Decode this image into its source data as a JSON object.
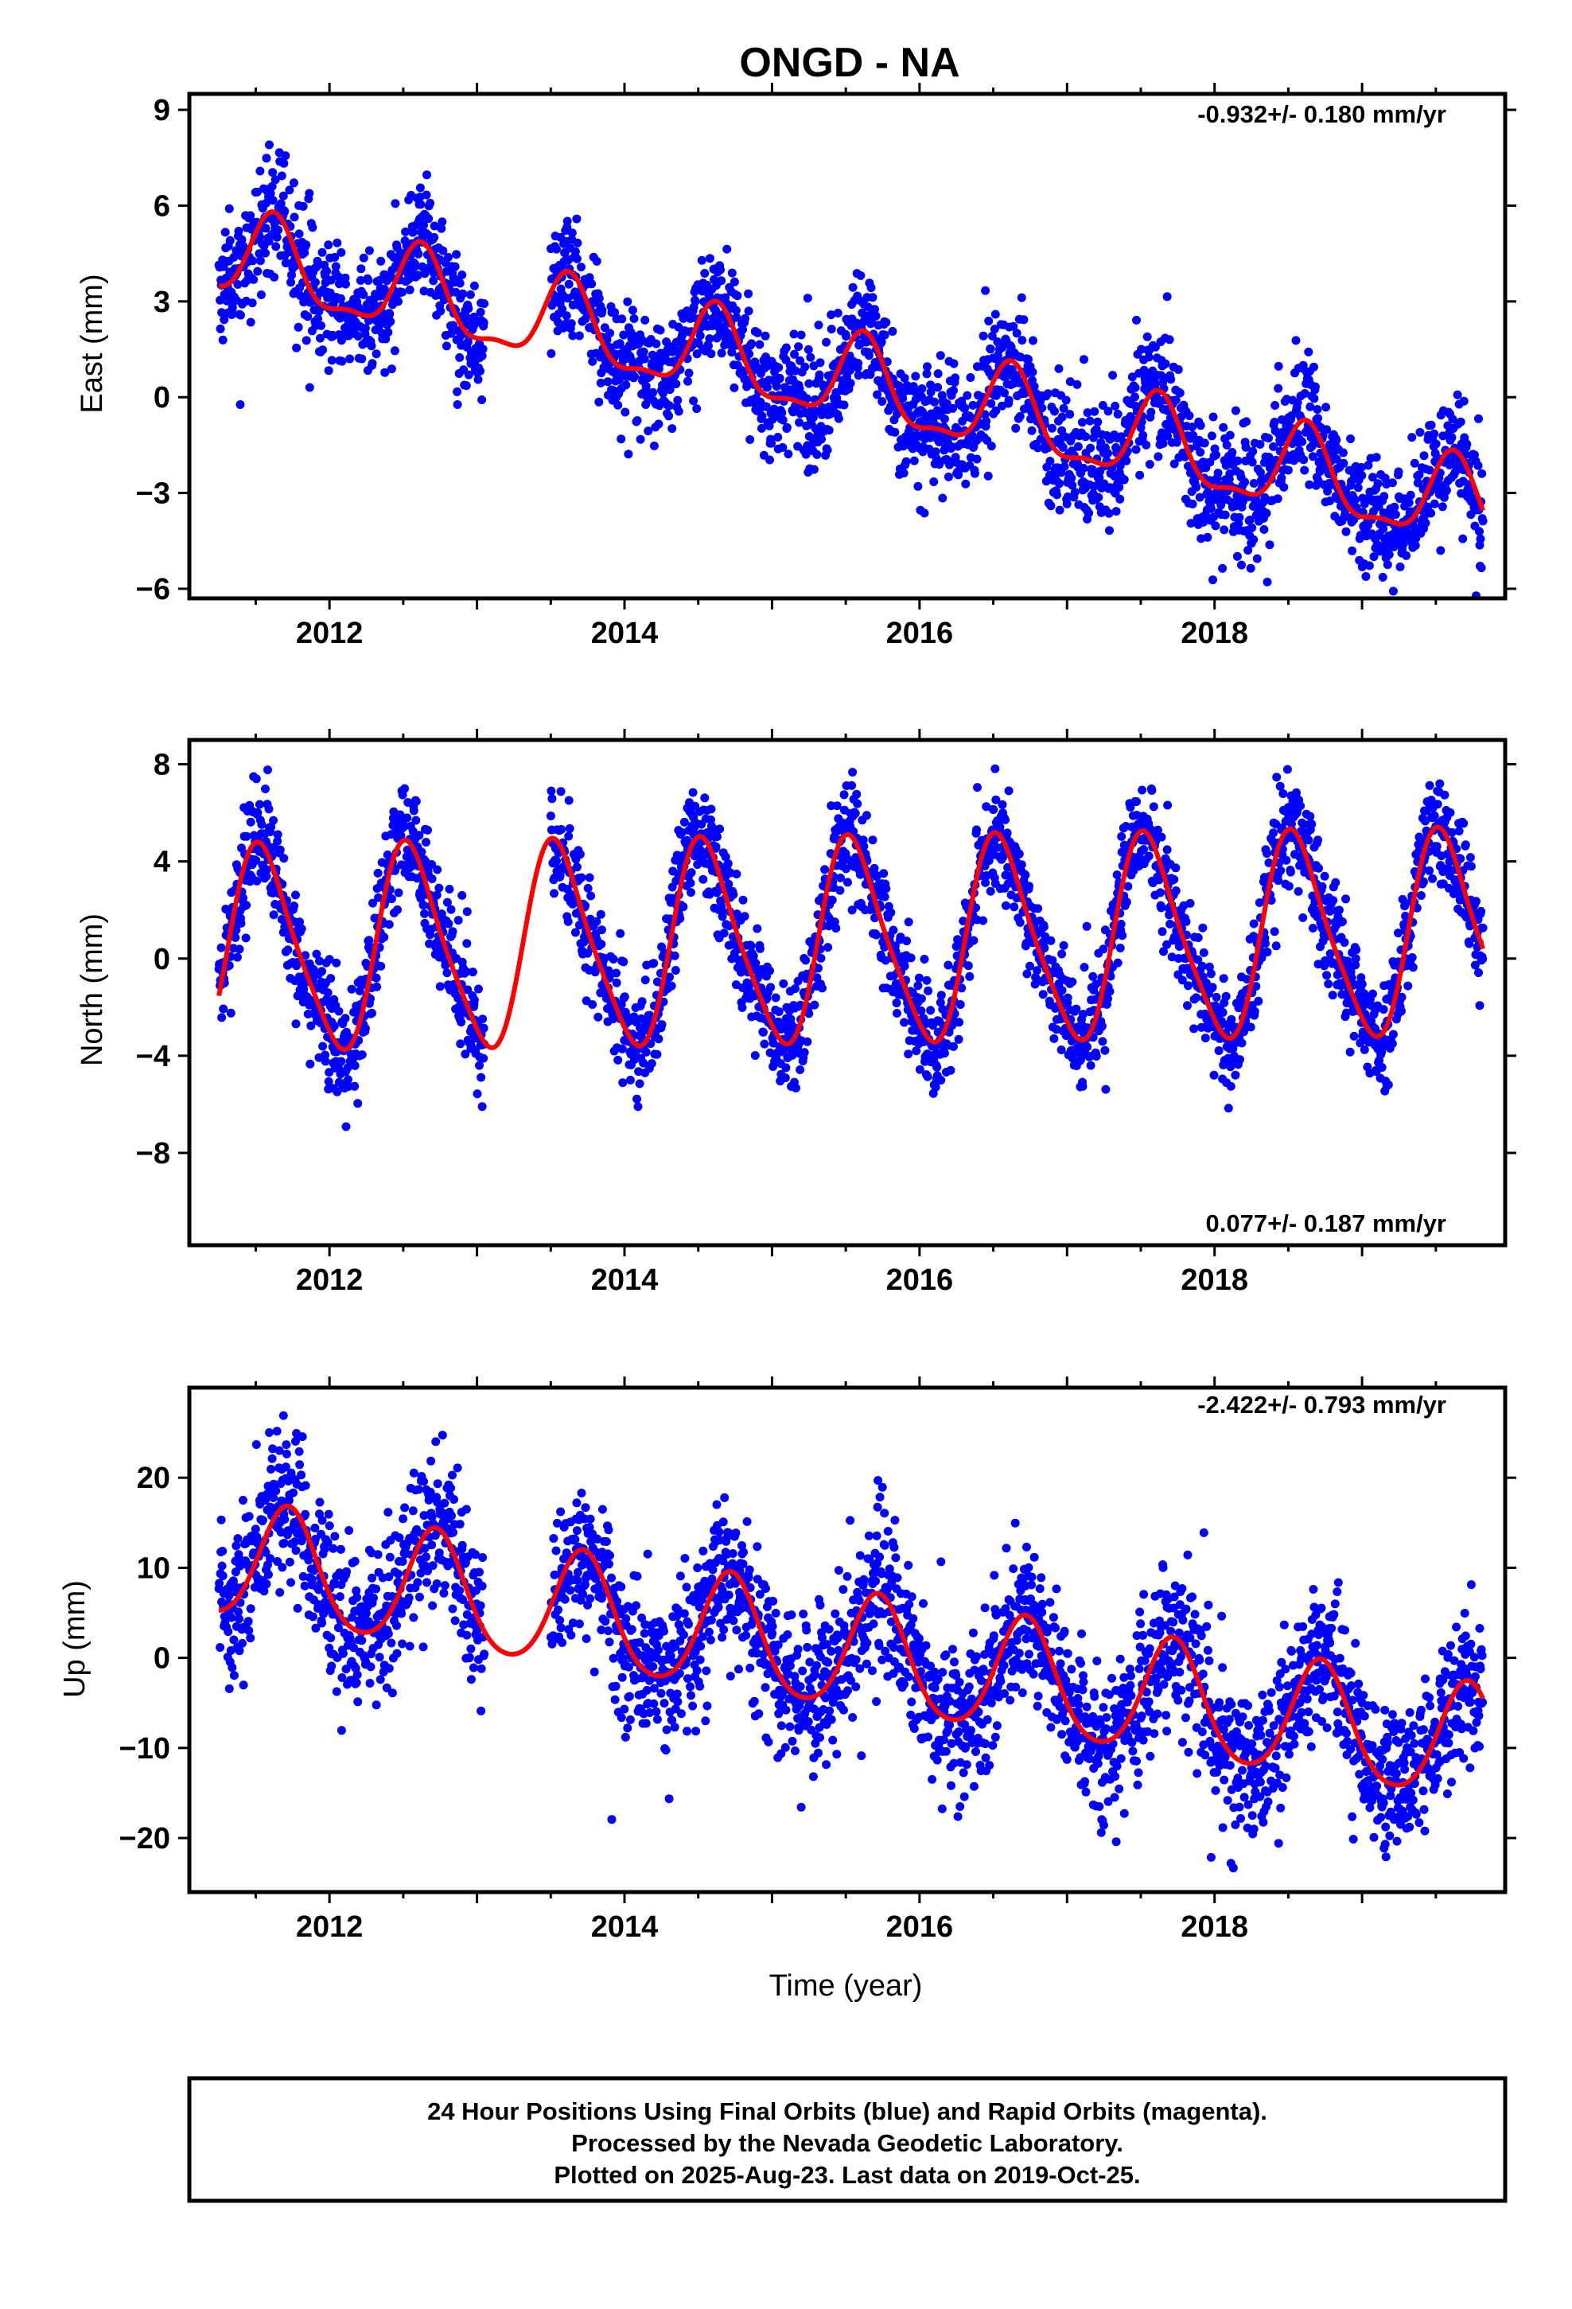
{
  "title": "ONGD - NA",
  "xlabel": "Time (year)",
  "footer": {
    "lines": [
      "24 Hour Positions Using Final Orbits (blue) and Rapid Orbits (magenta).",
      "Processed by the Nevada Geodetic Laboratory.",
      "Plotted on 2025-Aug-23. Last data on 2019-Oct-25."
    ]
  },
  "colors": {
    "points": "#0000ff",
    "fit": "#ff0000",
    "frame": "#000000"
  },
  "chart_data": [
    {
      "type": "scatter",
      "panel": "east",
      "ylabel": "East (mm)",
      "rate_text": "-0.932+/- 0.180 mm/yr",
      "rate_position": "top-right",
      "xlim": [
        2011.05,
        2019.97
      ],
      "ylim": [
        -6.3,
        9.5
      ],
      "xticks": [
        2012,
        2014,
        2016,
        2018
      ],
      "yticks": [
        -6,
        -3,
        0,
        3,
        6,
        9
      ],
      "ytick_labels": [
        "−6",
        "−3",
        "0",
        "3",
        "6",
        "9"
      ],
      "data_start": 2011.25,
      "data_end": 2019.82,
      "gap": [
        2013.05,
        2013.5
      ],
      "fit": {
        "offset": 4.4,
        "rate": -0.932,
        "annual_amp": 1.3,
        "annual_peak": 2011.62,
        "semiannual_amp": 0.45,
        "semiannual_peak": 2011.62
      },
      "scatter_sigma": 0.95,
      "series": [
        {
          "name": "24 Hour Positions Using Final Orbits (blue)",
          "kind": "scatter",
          "color": "#0000ff"
        },
        {
          "name": "fit",
          "kind": "line",
          "color": "#ff0000"
        }
      ]
    },
    {
      "type": "scatter",
      "panel": "north",
      "ylabel": "North (mm)",
      "rate_text": "0.077+/- 0.187 mm/yr",
      "rate_position": "bottom-right",
      "xlim": [
        2011.05,
        2019.97
      ],
      "ylim": [
        -11.8,
        9.0
      ],
      "xticks": [
        2012,
        2014,
        2016,
        2018
      ],
      "yticks": [
        -8,
        -4,
        0,
        4,
        8
      ],
      "ytick_labels": [
        "−8",
        "−4",
        "0",
        "4",
        "8"
      ],
      "data_start": 2011.25,
      "data_end": 2019.82,
      "gap": [
        2013.05,
        2013.5
      ],
      "fit": {
        "offset": 0.3,
        "rate": 0.077,
        "annual_amp": 4.1,
        "annual_peak": 2011.55,
        "semiannual_amp": 0.7,
        "semiannual_peak": 2011.45
      },
      "scatter_sigma": 1.1,
      "series": [
        {
          "name": "24 Hour Positions Using Final Orbits (blue)",
          "kind": "scatter",
          "color": "#0000ff"
        },
        {
          "name": "fit",
          "kind": "line",
          "color": "#ff0000"
        }
      ]
    },
    {
      "type": "scatter",
      "panel": "up",
      "ylabel": "Up (mm)",
      "rate_text": "-2.422+/- 0.793 mm/yr",
      "rate_position": "top-right",
      "xlim": [
        2011.05,
        2019.97
      ],
      "ylim": [
        -26,
        30
      ],
      "xticks": [
        2012,
        2014,
        2016,
        2018
      ],
      "yticks": [
        -20,
        -10,
        0,
        10,
        20
      ],
      "ytick_labels": [
        "−20",
        "−10",
        "0",
        "10",
        "20"
      ],
      "data_start": 2011.25,
      "data_end": 2019.82,
      "gap": [
        2013.05,
        2013.5
      ],
      "fit": {
        "offset": 10.8,
        "rate": -2.422,
        "annual_amp": 6.4,
        "annual_peak": 2011.72,
        "semiannual_amp": 0.8,
        "semiannual_peak": 2011.72
      },
      "scatter_sigma": 4.3,
      "series": [
        {
          "name": "24 Hour Positions Using Final Orbits (blue)",
          "kind": "scatter",
          "color": "#0000ff"
        },
        {
          "name": "fit",
          "kind": "line",
          "color": "#ff0000"
        }
      ]
    }
  ]
}
